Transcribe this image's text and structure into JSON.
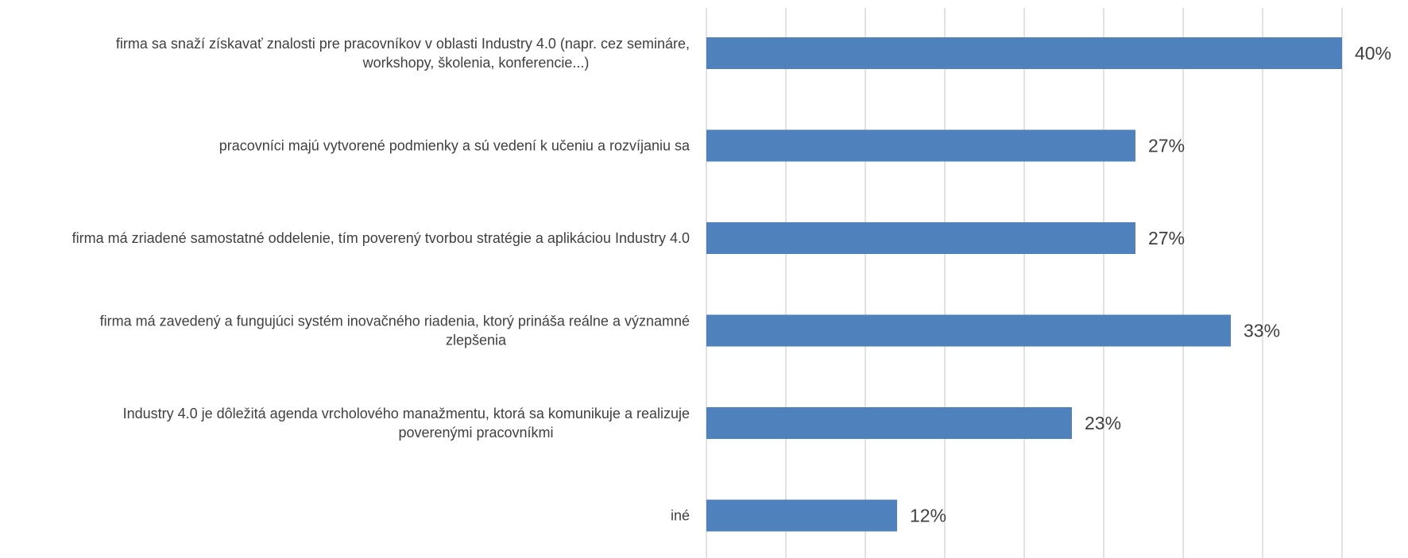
{
  "chart_data": {
    "type": "bar",
    "orientation": "horizontal",
    "categories": [
      [
        "firma sa snaží získavať znalosti pre pracovníkov v oblasti Industry 4.0 (napr. cez semináre,",
        "workshopy, školenia, konferencie...)"
      ],
      [
        "pracovníci majú vytvorené podmienky a sú vedení k učeniu a rozvíjaniu sa"
      ],
      [
        "firma má zriadené samostatné oddelenie, tím poverený tvorbou stratégie a aplikáciou Industry 4.0"
      ],
      [
        "firma má zavedený a fungujúci systém inovačného riadenia, ktorý prináša reálne a významné",
        "zlepšenia"
      ],
      [
        "Industry 4.0 je dôležitá agenda vrcholového manažmentu, ktorá sa komunikuje a realizuje",
        "poverenými pracovníkmi"
      ],
      [
        "iné"
      ]
    ],
    "values": [
      40,
      27,
      27,
      33,
      23,
      12
    ],
    "data_labels": [
      "40%",
      "27%",
      "27%",
      "33%",
      "23%",
      "12%"
    ],
    "xlim": [
      0,
      40
    ],
    "grid": true,
    "colors": {
      "bar": "#4f81bd",
      "grid": "#d9d9d9",
      "text": "#404040"
    }
  }
}
